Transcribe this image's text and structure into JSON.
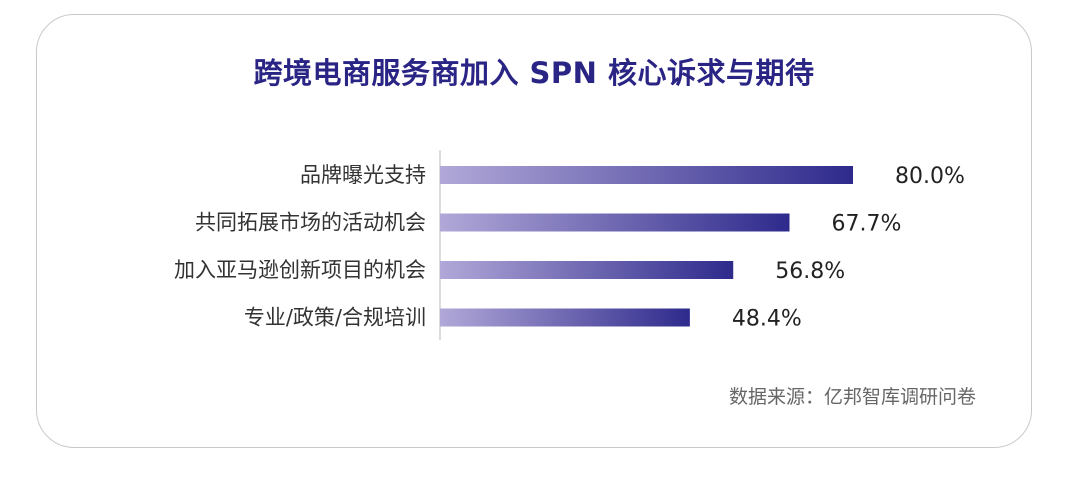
{
  "title": "跨境电商服务商加入 SPN 核心诉求与期待",
  "source": "数据来源：亿邦智库调研问卷",
  "colors": {
    "bar_start": "#b1a8d8",
    "bar_end": "#2e2a8c",
    "title": "#2a2485"
  },
  "chart_data": {
    "type": "bar",
    "orientation": "horizontal",
    "categories": [
      "品牌曝光支持",
      "共同拓展市场的活动机会",
      "加入亚马逊创新项目的机会",
      "专业/政策/合规培训"
    ],
    "values": [
      80.0,
      67.7,
      56.8,
      48.4
    ],
    "value_labels": [
      "80.0%",
      "67.7%",
      "56.8%",
      "48.4%"
    ],
    "unit": "%",
    "xlim": [
      0,
      100
    ],
    "grid": false,
    "legend": "none"
  }
}
